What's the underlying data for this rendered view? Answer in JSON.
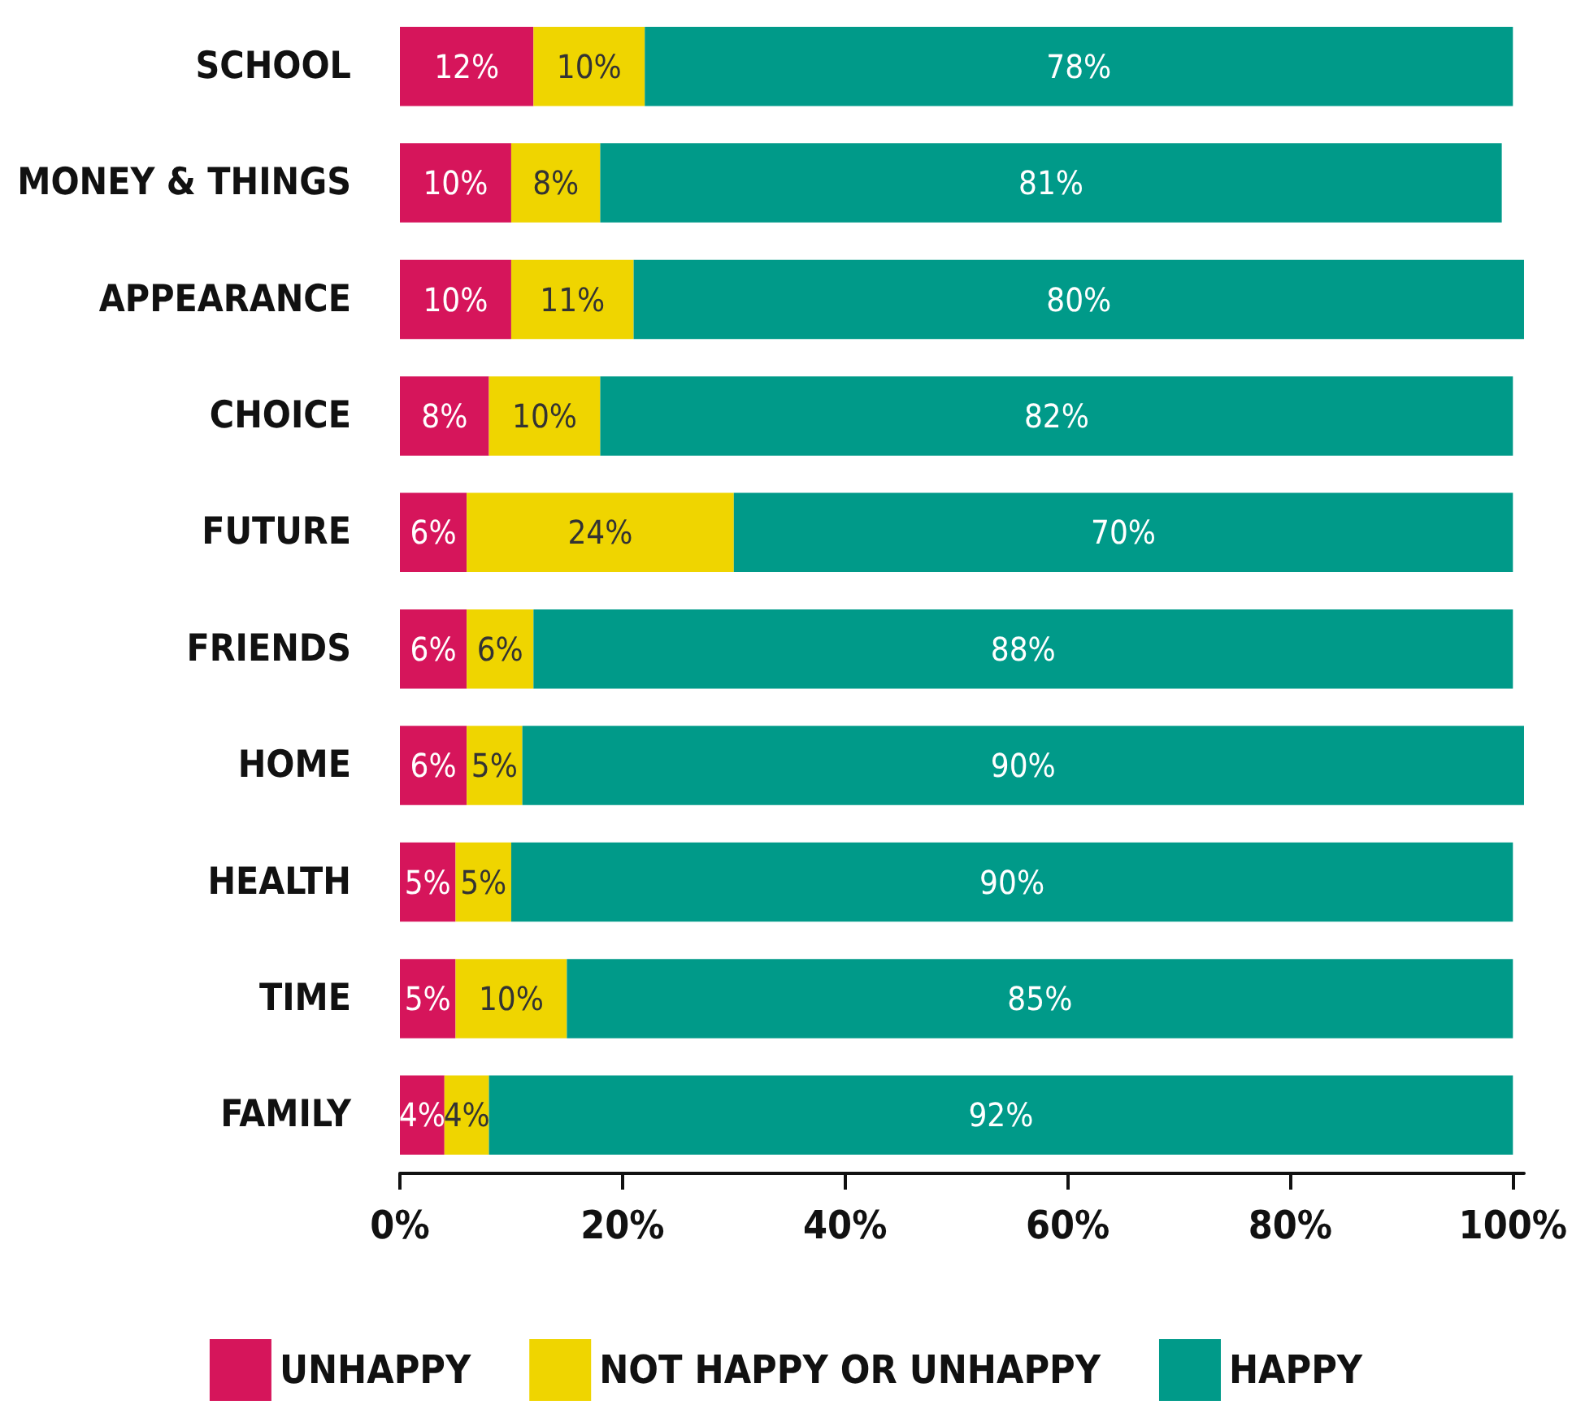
{
  "chart_data": {
    "type": "bar",
    "orientation": "horizontal",
    "stacked": true,
    "categories": [
      "SCHOOL",
      "MONEY & THINGS",
      "APPEARANCE",
      "CHOICE",
      "FUTURE",
      "FRIENDS",
      "HOME",
      "HEALTH",
      "TIME",
      "FAMILY"
    ],
    "series": [
      {
        "name": "UNHAPPY",
        "color": "#d6155b",
        "values": [
          12,
          10,
          10,
          8,
          6,
          6,
          6,
          5,
          5,
          4
        ],
        "value_labels": [
          "12%",
          "10%",
          "10%",
          "8%",
          "6%",
          "6%",
          "6%",
          "5%",
          "5%",
          "4%"
        ]
      },
      {
        "name": "NOT HAPPY OR UNHAPPY",
        "color": "#efd500",
        "values": [
          10,
          8,
          11,
          10,
          24,
          6,
          5,
          5,
          10,
          4
        ],
        "value_labels": [
          "10%",
          "8%",
          "11%",
          "10%",
          "24%",
          "6%",
          "5%",
          "5%",
          "10%",
          "4%"
        ]
      },
      {
        "name": "HAPPY",
        "color": "#009a89",
        "values": [
          78,
          81,
          80,
          82,
          70,
          88,
          90,
          90,
          85,
          92
        ],
        "value_labels": [
          "78%",
          "81%",
          "80%",
          "82%",
          "70%",
          "88%",
          "90%",
          "90%",
          "85%",
          "92%"
        ]
      }
    ],
    "xlim": [
      0,
      101
    ],
    "xticks": [
      {
        "value": 0,
        "label": "0%"
      },
      {
        "value": 20,
        "label": "20%"
      },
      {
        "value": 40,
        "label": "40%"
      },
      {
        "value": 60,
        "label": "60%"
      },
      {
        "value": 80,
        "label": "80%"
      },
      {
        "value": 100,
        "label": "100%"
      }
    ],
    "grid": false,
    "legend": "bottom"
  }
}
